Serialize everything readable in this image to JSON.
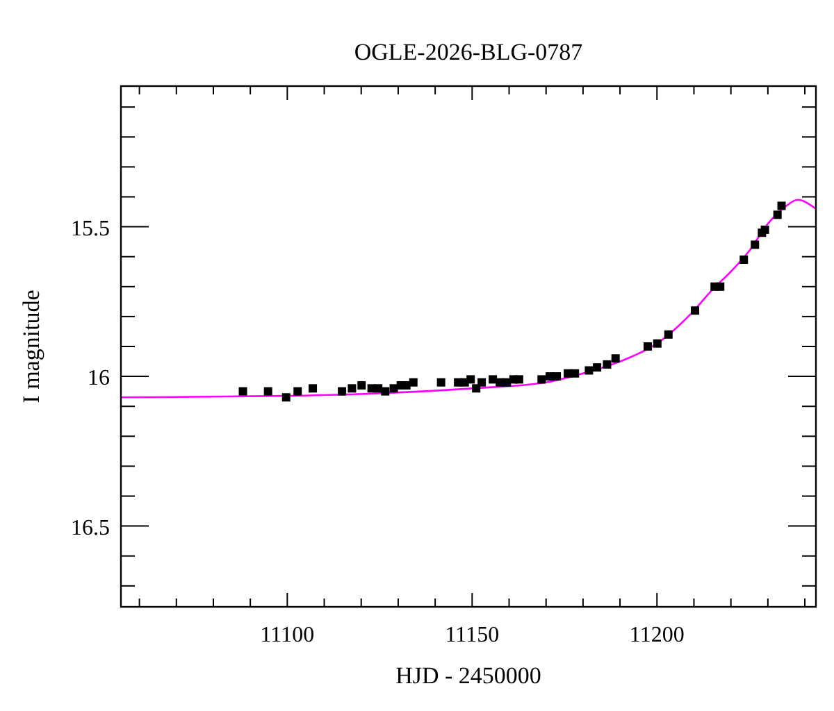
{
  "chart_data": {
    "type": "scatter",
    "title": "OGLE-2026-BLG-0787",
    "xlabel": "HJD - 2450000",
    "ylabel": "I magnitude",
    "xlim": [
      11055,
      11243
    ],
    "ylim": [
      16.77,
      15.03
    ],
    "xticks": [
      {
        "value": 11060,
        "label": null
      },
      {
        "value": 11070,
        "label": null
      },
      {
        "value": 11080,
        "label": null
      },
      {
        "value": 11090,
        "label": null
      },
      11100,
      {
        "value": 11110,
        "label": null
      },
      {
        "value": 11120,
        "label": null
      },
      {
        "value": 11130,
        "label": null
      },
      {
        "value": 11140,
        "label": null
      },
      11150,
      {
        "value": 11160,
        "label": null
      },
      {
        "value": 11170,
        "label": null
      },
      {
        "value": 11180,
        "label": null
      },
      {
        "value": 11190,
        "label": null
      },
      11200,
      {
        "value": 11210,
        "label": null
      },
      {
        "value": 11220,
        "label": null
      },
      {
        "value": 11230,
        "label": null
      },
      {
        "value": 11240,
        "label": null
      }
    ],
    "yticks": [
      {
        "value": 15.1,
        "label": null
      },
      {
        "value": 15.2,
        "label": null
      },
      {
        "value": 15.3,
        "label": null
      },
      {
        "value": 15.4,
        "label": null
      },
      15.5,
      {
        "value": 15.6,
        "label": null
      },
      {
        "value": 15.7,
        "label": null
      },
      {
        "value": 15.8,
        "label": null
      },
      {
        "value": 15.9,
        "label": null
      },
      16,
      {
        "value": 16.1,
        "label": null
      },
      {
        "value": 16.2,
        "label": null
      },
      {
        "value": 16.3,
        "label": null
      },
      {
        "value": 16.4,
        "label": null
      },
      16.5,
      {
        "value": 16.6,
        "label": null
      },
      {
        "value": 16.7,
        "label": null
      }
    ],
    "grid": false,
    "series": [
      {
        "color": "#000000",
        "marker": "square",
        "x": [
          11088.0,
          11094.8,
          11099.7,
          11102.8,
          11106.9,
          11114.8,
          11117.5,
          11120.1,
          11122.8,
          11124.6,
          11126.5,
          11128.8,
          11130.7,
          11132.2,
          11134.1,
          11141.6,
          11146.2,
          11148.0,
          11149.6,
          11151.1,
          11152.6,
          11155.6,
          11157.5,
          11159.4,
          11161.2,
          11162.7,
          11168.8,
          11171.0,
          11172.9,
          11175.9,
          11177.8,
          11181.6,
          11183.8,
          11186.5,
          11188.8,
          11197.5,
          11200.1,
          11203.1,
          11210.3,
          11215.6,
          11217.1,
          11223.5,
          11226.5,
          11228.4,
          11229.2,
          11232.6,
          11233.7
        ],
        "values": [
          16.05,
          16.05,
          16.07,
          16.05,
          16.04,
          16.05,
          16.04,
          16.03,
          16.04,
          16.04,
          16.05,
          16.04,
          16.03,
          16.03,
          16.02,
          16.02,
          16.02,
          16.02,
          16.01,
          16.04,
          16.02,
          16.01,
          16.02,
          16.02,
          16.01,
          16.01,
          16.01,
          16.0,
          16.0,
          15.99,
          15.99,
          15.98,
          15.97,
          15.96,
          15.94,
          15.9,
          15.89,
          15.86,
          15.78,
          15.7,
          15.7,
          15.61,
          15.56,
          15.52,
          15.51,
          15.46,
          15.43
        ]
      },
      {
        "type": "line",
        "color": "#ff00ff",
        "marker": "none",
        "line_style": "solid",
        "x": [
          11055,
          11100,
          11150,
          11170,
          11180,
          11190,
          11200,
          11210,
          11215,
          11220,
          11225,
          11230,
          11235,
          11238,
          11243
        ],
        "values": [
          16.07,
          16.065,
          16.04,
          16.02,
          15.99,
          15.95,
          15.89,
          15.78,
          15.71,
          15.65,
          15.58,
          15.49,
          15.43,
          15.41,
          15.44
        ]
      }
    ]
  }
}
